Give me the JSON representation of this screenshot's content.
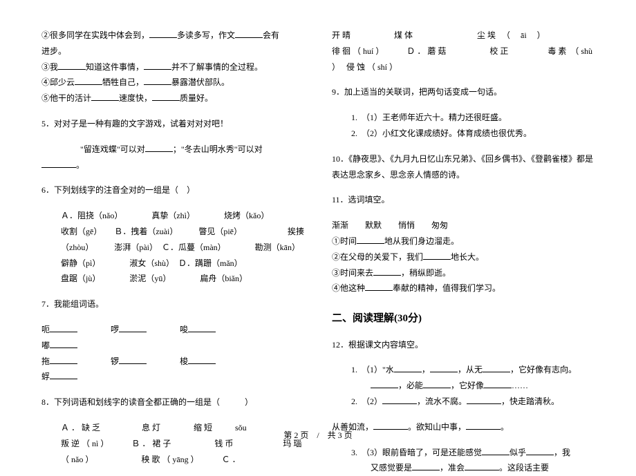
{
  "left": {
    "l1a": "②很多同学在实践中体会到，",
    "l1b": "多读多写，作文",
    "l1c": "会有",
    "l2": "进步。",
    "l3a": "③我",
    "l3b": "知道这件事情，",
    "l3c": "并不了解事情的全过程。",
    "l4a": "④邱少云",
    "l4b": "牺牲自己，",
    "l4c": "暴露潜伏部队。",
    "l5a": "⑤他干的活计",
    "l5b": "速度快，",
    "l5c": "质量好。",
    "q5": "5．对对子是一种有趣的文字游戏，试着对对对吧！",
    "q5_la": "\"留连戏蝶\"可以对",
    "q5_lb": "；\"冬去山明水秀\"可以对",
    "q5_end": "。",
    "q6": "6．下列划线字的注音全对的一组是（　）",
    "q6_a": "Ａ．阻挠（nǎo）　　　　真挚（zhì）　　　　烧烤（kǎo）　　　　收割（gē）　　Ｂ．拽着（zuài）　　　瞥见（piē）　　　　　　挨揍（zhòu）　　　澎湃（pài）　Ｃ．瓜蔓（màn）　　　　勘测（kān）　　　　僻静（pì）　　　　淑女（shù）　Ｄ．蹒跚（mǎn）　　　　　　　盘踞（jù）　　　　淤泥（yū）　　　　扁舟（biǎn）",
    "q7": "7．我能组词语。",
    "q7_r1a": "呃",
    "q7_r1b": "啰",
    "q7_r1c": "唆",
    "q7_r2a": "嘟",
    "q7_r3a": "拖",
    "q7_r3b": "锣",
    "q7_r3c": "梭",
    "q7_r4a": "蜉",
    "q8": "8．下列词语和划线字的读音全都正确的一组是（　　　）",
    "q8_a": "Ａ ． 缺 乏 　 　 　 　息 灯 　 　 　 缩 短 　 　 sǒu　 　 　 　　 　 　　 叛 逆 （ nì ） 　 　 Ｂ ． 裙 子 　 　 　 　 钱 币　 　 　 　　 玛 瑙 （ nǎo ）　 　 　 　 　 秧 歌 （ yāng ） 　 　 Ｃ ．"
  },
  "right": {
    "r1": "开 晴 　 　 　 　 煤 体 　 　 　 　 　 　 尘 埃 　（ 　āi　 ） 　 　 　 　 　 徘 徊 （ huí ） 　 　 Ｄ ． 蘑 菇 　 　 　 　 校 正　 　 　 　毒 素　（ shù ）　 侵 蚀 （ shí ）",
    "q9": "9．加上适当的关联词，把两句话变成一句话。",
    "q9_1": "（1）王老师年近六十。精力还很旺盛。",
    "q9_2": "（2）小红文化课成绩好。体育成绩也很优秀。",
    "q10": "10．《静夜思》、《九月九日忆山东兄弟》、《回乡偶书》、《登鹳雀楼》都是表达思念家乡、思念亲人情感的诗。",
    "q11": "11．选词填空。",
    "q11_words": "渐渐　　默默　　悄悄　　匆匆",
    "q11_1a": "①时间",
    "q11_1b": "地从我们身边溜走。",
    "q11_2a": "②在父母的关爱下，我们",
    "q11_2b": "地长大。",
    "q11_3a": "③时间来去",
    "q11_3b": "，稍纵即逝。",
    "q11_4a": "④他这种",
    "q11_4b": "奉献的精神，值得我们学习。",
    "section2": "二、阅读理解(30分)",
    "q12": "12．根据课文内容填空。",
    "q12_1a": "（1）\"水",
    "q12_1b": "，",
    "q12_1c": "，从无",
    "q12_1d": "，它好像有志向。",
    "q12_1e": "，必能",
    "q12_1f": "，它好像",
    "q12_1g": "……",
    "q12_2a": "（2）",
    "q12_2b": "，流水不腐。",
    "q12_2c": "，快走踏清秋。",
    "q12_mid_a": "从善如流，",
    "q12_mid_b": "。欲知山中事，",
    "q12_mid_c": "。",
    "q12_3a": "（3）眼前昏暗了，可是还能感觉",
    "q12_3b": "似乎",
    "q12_3c": "，我",
    "q12_3d": "又感觉要是",
    "q12_3e": "，准会",
    "q12_3f": "。这段话主要"
  },
  "footer": "第 2 页　/　共 3 页"
}
